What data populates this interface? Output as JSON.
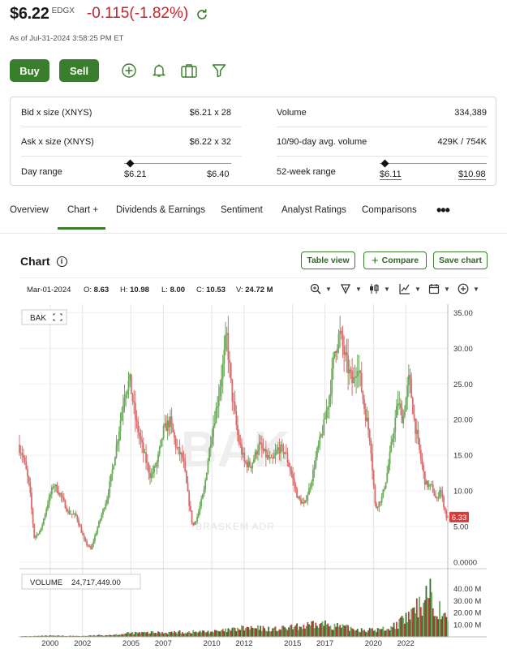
{
  "quote": {
    "price": "$6.22",
    "exchange": "EDGX",
    "change": "-0.115(-1.82%)",
    "as_of": "As of Jul-31-2024  3:58:25 PM ET"
  },
  "actions": {
    "buy_label": "Buy",
    "sell_label": "Sell",
    "icons": [
      "plus-circle-icon",
      "bell-icon",
      "briefcase-icon",
      "filter-icon"
    ]
  },
  "summary": {
    "bid_label": "Bid x size (XNYS)",
    "bid_value": "$6.21 x 28",
    "ask_label": "Ask x size (XNYS)",
    "ask_value": "$6.22 x 32",
    "day_range_label": "Day range",
    "day_low": "$6.21",
    "day_high": "$6.40",
    "day_range_position": 0.05,
    "volume_label": "Volume",
    "volume_value": "334,389",
    "avg_volume_label": "10/90-day avg. volume",
    "avg_volume_value": "429K / 754K",
    "week52_label": "52-week range",
    "week52_low": "$6.11",
    "week52_high": "$10.98",
    "week52_position": 0.02
  },
  "tabs": [
    "Overview",
    "Chart +",
    "Dividends & Earnings",
    "Sentiment",
    "Analyst Ratings",
    "Comparisons"
  ],
  "active_tab": "Chart +",
  "chart_section": {
    "title": "Chart",
    "table_view": "Table view",
    "compare": "Compare",
    "save_chart": "Save chart",
    "ohlc": {
      "date": "Mar-01-2024",
      "o_label": "O:",
      "o": "8.63",
      "h_label": "H:",
      "h": "10.98",
      "l_label": "L:",
      "l": "8.00",
      "c_label": "C:",
      "c": "10.53",
      "v_label": "V:",
      "v": "24.72 M"
    },
    "symbol_tag": "BAK",
    "watermark_symbol": "BAK",
    "watermark_name": "BRASKEM ADR",
    "last_price_tag": "6.33",
    "volume_label": "VOLUME",
    "volume_value": "24,717,449.00"
  },
  "colors": {
    "accent_green": "#3a7d2c",
    "negative_red": "#c0262d",
    "candle_up": "#6aaa5a",
    "candle_down": "#d96d6d",
    "price_tag": "#d93a3a"
  },
  "chart_data": {
    "type": "candlestick",
    "x_ticks": [
      "2000",
      "2002",
      "2005",
      "2007",
      "2010",
      "2012",
      "2015",
      "2017",
      "2020",
      "2022"
    ],
    "x_tick_years": [
      2000,
      2002,
      2005,
      2007,
      2010,
      2012,
      2015,
      2017,
      2020,
      2022
    ],
    "x_range": [
      1998.1,
      2024.6
    ],
    "y_ticks": [
      "35.00",
      "30.00",
      "25.00",
      "20.00",
      "15.00",
      "10.00",
      "5.00",
      "0.0000"
    ],
    "y_tick_values": [
      35,
      30,
      25,
      20,
      15,
      10,
      5,
      0
    ],
    "y_range": [
      0,
      35.5
    ],
    "last_price": 6.33,
    "price_points": [
      [
        1998.1,
        16.5
      ],
      [
        1998.4,
        15.0
      ],
      [
        1998.8,
        10.5
      ],
      [
        1999.1,
        3.5
      ],
      [
        1999.5,
        4.5
      ],
      [
        1999.9,
        8.0
      ],
      [
        2000.3,
        11.0
      ],
      [
        2000.7,
        9.5
      ],
      [
        2001.2,
        7.0
      ],
      [
        2001.7,
        6.5
      ],
      [
        2002.2,
        3.0
      ],
      [
        2002.6,
        1.8
      ],
      [
        2003.1,
        5.5
      ],
      [
        2003.6,
        9.0
      ],
      [
        2003.9,
        12.5
      ],
      [
        2004.3,
        18.0
      ],
      [
        2004.7,
        24.0
      ],
      [
        2005.0,
        25.5
      ],
      [
        2005.4,
        19.5
      ],
      [
        2005.9,
        15.0
      ],
      [
        2006.3,
        12.0
      ],
      [
        2006.7,
        14.0
      ],
      [
        2007.1,
        18.5
      ],
      [
        2007.5,
        19.8
      ],
      [
        2007.9,
        16.0
      ],
      [
        2008.3,
        14.5
      ],
      [
        2008.6,
        9.5
      ],
      [
        2008.9,
        5.0
      ],
      [
        2009.2,
        6.5
      ],
      [
        2009.6,
        10.0
      ],
      [
        2010.0,
        17.0
      ],
      [
        2010.4,
        22.0
      ],
      [
        2010.8,
        28.0
      ],
      [
        2011.0,
        32.0
      ],
      [
        2011.3,
        24.0
      ],
      [
        2011.7,
        17.5
      ],
      [
        2012.1,
        14.0
      ],
      [
        2012.5,
        13.5
      ],
      [
        2013.0,
        16.5
      ],
      [
        2013.4,
        15.0
      ],
      [
        2013.8,
        14.0
      ],
      [
        2014.2,
        16.0
      ],
      [
        2014.6,
        15.5
      ],
      [
        2015.0,
        12.5
      ],
      [
        2015.4,
        9.0
      ],
      [
        2015.8,
        8.0
      ],
      [
        2016.2,
        11.0
      ],
      [
        2016.6,
        15.5
      ],
      [
        2017.0,
        19.0
      ],
      [
        2017.4,
        24.0
      ],
      [
        2017.7,
        30.0
      ],
      [
        2018.0,
        32.0
      ],
      [
        2018.4,
        28.0
      ],
      [
        2018.8,
        25.0
      ],
      [
        2019.1,
        28.0
      ],
      [
        2019.5,
        22.0
      ],
      [
        2019.9,
        17.0
      ],
      [
        2020.2,
        7.5
      ],
      [
        2020.6,
        9.0
      ],
      [
        2020.9,
        12.0
      ],
      [
        2021.3,
        18.0
      ],
      [
        2021.6,
        22.5
      ],
      [
        2021.9,
        20.0
      ],
      [
        2022.3,
        26.0
      ],
      [
        2022.6,
        20.0
      ],
      [
        2022.9,
        16.0
      ],
      [
        2023.3,
        11.0
      ],
      [
        2023.7,
        10.5
      ],
      [
        2024.0,
        8.5
      ],
      [
        2024.2,
        10.5
      ],
      [
        2024.6,
        6.33
      ]
    ],
    "volume_ticks": [
      "40.00 M",
      "30.00 M",
      "20.00 M",
      "10.00 M"
    ],
    "volume_tick_values": [
      40,
      30,
      20,
      10
    ],
    "volume_range": [
      0,
      47
    ],
    "volume_points": [
      [
        1998.1,
        0.5
      ],
      [
        2000,
        1
      ],
      [
        2002,
        0.8
      ],
      [
        2004,
        2
      ],
      [
        2005,
        3.5
      ],
      [
        2007,
        4
      ],
      [
        2009,
        4.5
      ],
      [
        2010.5,
        5
      ],
      [
        2012,
        8
      ],
      [
        2014,
        7
      ],
      [
        2015,
        8.5
      ],
      [
        2016,
        10
      ],
      [
        2017,
        12
      ],
      [
        2018,
        9
      ],
      [
        2019,
        7
      ],
      [
        2020,
        6
      ],
      [
        2021,
        8
      ],
      [
        2022,
        16
      ],
      [
        2023,
        30
      ],
      [
        2023.4,
        48
      ],
      [
        2023.8,
        27
      ],
      [
        2024.2,
        24.72
      ],
      [
        2024.6,
        12
      ]
    ]
  }
}
